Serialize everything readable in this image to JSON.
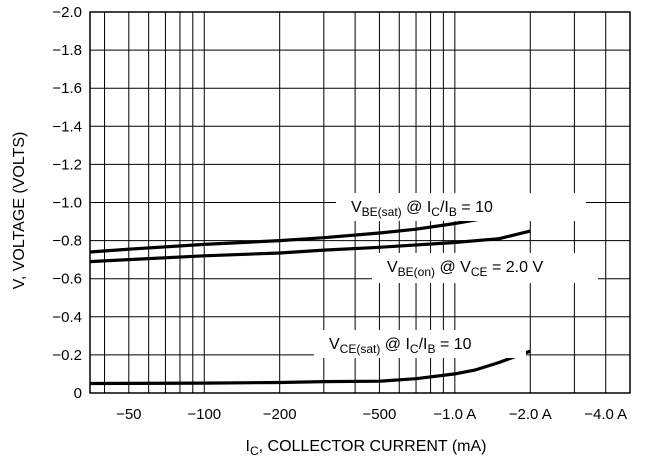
{
  "chart_data": {
    "type": "line",
    "xlabel": {
      "main": "I",
      "sub": "C",
      "rest": ", COLLECTOR CURRENT (mA)"
    },
    "ylabel": "V, VOLTAGE (VOLTS)",
    "x_scale": "log",
    "y_reversed": true,
    "xlim": [
      -35,
      -5000
    ],
    "ylim": [
      0,
      -2.0
    ],
    "grid": true,
    "x_ticks": [
      {
        "value": -50,
        "label": "−50"
      },
      {
        "value": -100,
        "label": "−100"
      },
      {
        "value": -200,
        "label": "−200"
      },
      {
        "value": -500,
        "label": "−500"
      },
      {
        "value": -1000,
        "label": "−1.0 A"
      },
      {
        "value": -2000,
        "label": "−2.0 A"
      },
      {
        "value": -4000,
        "label": "−4.0 A"
      }
    ],
    "y_ticks": [
      {
        "value": -2.0,
        "label": "−2.0"
      },
      {
        "value": -1.8,
        "label": "−1.8"
      },
      {
        "value": -1.6,
        "label": "−1.6"
      },
      {
        "value": -1.4,
        "label": "−1.4"
      },
      {
        "value": -1.2,
        "label": "−1.2"
      },
      {
        "value": -1.0,
        "label": "−1.0"
      },
      {
        "value": -0.8,
        "label": "−0.8"
      },
      {
        "value": -0.6,
        "label": "−0.6"
      },
      {
        "value": -0.4,
        "label": "−0.4"
      },
      {
        "value": -0.2,
        "label": "−0.2"
      },
      {
        "value": 0,
        "label": "0"
      }
    ],
    "series": [
      {
        "label_parts": [
          "V",
          "BE(sat)",
          " @ I",
          "C",
          "/I",
          "B",
          " = 10"
        ],
        "x": [
          -35,
          -50,
          -100,
          -200,
          -300,
          -500,
          -700,
          -1000,
          -1500,
          -2000
        ],
        "y": [
          -0.74,
          -0.755,
          -0.78,
          -0.8,
          -0.815,
          -0.84,
          -0.86,
          -0.89,
          -0.93,
          -0.96
        ]
      },
      {
        "label_parts": [
          "V",
          "BE(on)",
          " @ V",
          "CE",
          " = 2.0 V"
        ],
        "x": [
          -35,
          -50,
          -100,
          -200,
          -300,
          -500,
          -1000,
          -1500,
          -2000
        ],
        "y": [
          -0.69,
          -0.7,
          -0.72,
          -0.735,
          -0.75,
          -0.765,
          -0.79,
          -0.81,
          -0.85
        ]
      },
      {
        "label_parts": [
          "V",
          "CE(sat)",
          " @ I",
          "C",
          "/I",
          "B",
          " = 10"
        ],
        "x": [
          -35,
          -100,
          -200,
          -300,
          -500,
          -700,
          -1000,
          -1200,
          -1500,
          -2000
        ],
        "y": [
          -0.05,
          -0.052,
          -0.055,
          -0.06,
          -0.062,
          -0.075,
          -0.1,
          -0.12,
          -0.16,
          -0.22
        ]
      }
    ]
  }
}
